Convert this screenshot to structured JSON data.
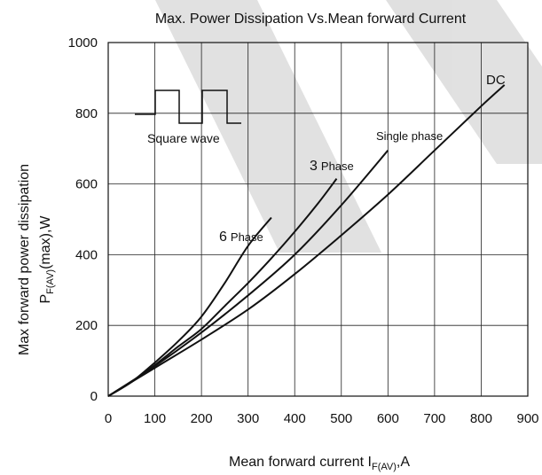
{
  "chart_data": {
    "type": "line",
    "title": "Max. Power Dissipation Vs.Mean forward Current",
    "xlabel": {
      "main": "Mean forward current ",
      "symbol": "I",
      "subscript": "F(AV)",
      "suffix": ",A"
    },
    "ylabel": {
      "line1": "Max forward power dissipation",
      "symbol": "P",
      "subscript": "F(AV)",
      "suffix": "(max),W"
    },
    "xlim": [
      0,
      900
    ],
    "ylim": [
      0,
      1000
    ],
    "x_ticks": [
      "0",
      "100",
      "200",
      "300",
      "400",
      "500",
      "600",
      "700",
      "800",
      "900"
    ],
    "y_ticks": [
      "0",
      "200",
      "400",
      "600",
      "800",
      "1000"
    ],
    "grid": true,
    "inset_label": "Square wave",
    "series": [
      {
        "name": "6 Phase",
        "label_num": "6",
        "label_text": "Phase",
        "x": [
          0,
          50,
          100,
          150,
          200,
          250,
          300,
          350
        ],
        "y": [
          0,
          40,
          95,
          155,
          225,
          320,
          425,
          505
        ]
      },
      {
        "name": "3 Phase",
        "label_num": "3",
        "label_text": "Phase",
        "x": [
          0,
          50,
          100,
          150,
          200,
          250,
          300,
          350,
          400,
          450,
          490
        ],
        "y": [
          0,
          40,
          88,
          140,
          190,
          255,
          320,
          390,
          465,
          545,
          615
        ]
      },
      {
        "name": "Single phase",
        "label_text": "Single phase",
        "x": [
          0,
          100,
          200,
          300,
          400,
          500,
          600
        ],
        "y": [
          0,
          85,
          180,
          285,
          400,
          540,
          695
        ]
      },
      {
        "name": "DC",
        "label_text": "DC",
        "x": [
          0,
          100,
          200,
          300,
          400,
          500,
          600,
          700,
          800,
          850
        ],
        "y": [
          0,
          80,
          160,
          245,
          345,
          455,
          570,
          695,
          820,
          880
        ]
      }
    ]
  }
}
